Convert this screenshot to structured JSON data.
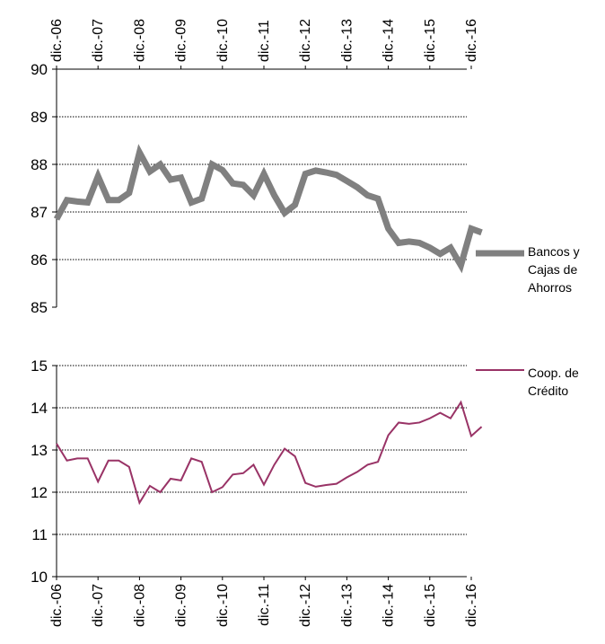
{
  "chart_data": [
    {
      "type": "line",
      "title": "",
      "xlabel": "",
      "ylabel": "",
      "ylim": [
        85,
        90
      ],
      "yticks": [
        85,
        86,
        87,
        88,
        89,
        90
      ],
      "grid": true,
      "x_tick_labels": [
        "dic.-06",
        "dic.-07",
        "dic.-08",
        "dic.-09",
        "dic.-10",
        "dic.-11",
        "dic.-12",
        "dic.-13",
        "dic.-14",
        "dic.-15",
        "dic.-16"
      ],
      "x_tick_position": "top",
      "legend_position": "right",
      "series": [
        {
          "name": "Bancos y Cajas de Ahorros",
          "color": "#808080",
          "x": [
            "dic.-06",
            "mar.-07",
            "jun.-07",
            "sep.-07",
            "dic.-07",
            "mar.-08",
            "jun.-08",
            "sep.-08",
            "dic.-08",
            "mar.-09",
            "jun.-09",
            "sep.-09",
            "dic.-09",
            "mar.-10",
            "jun.-10",
            "sep.-10",
            "dic.-10",
            "mar.-11",
            "jun.-11",
            "sep.-11",
            "dic.-11",
            "mar.-12",
            "jun.-12",
            "sep.-12",
            "dic.-12",
            "mar.-13",
            "jun.-13",
            "sep.-13",
            "dic.-13",
            "mar.-14",
            "jun.-14",
            "sep.-14",
            "dic.-14",
            "mar.-15",
            "jun.-15",
            "sep.-15",
            "dic.-15",
            "mar.-16",
            "jun.-16",
            "sep.-16",
            "dic.-16",
            "mar.-17"
          ],
          "values": [
            86.85,
            87.25,
            87.22,
            87.2,
            87.75,
            87.25,
            87.25,
            87.4,
            88.25,
            87.85,
            88.0,
            87.68,
            87.72,
            87.2,
            87.28,
            88.0,
            87.88,
            87.6,
            87.57,
            87.35,
            87.8,
            87.35,
            86.98,
            87.15,
            87.8,
            87.87,
            87.83,
            87.78,
            87.65,
            87.52,
            87.35,
            87.28,
            86.65,
            86.35,
            86.38,
            86.35,
            86.25,
            86.12,
            86.25,
            85.88,
            86.65,
            86.57
          ]
        }
      ]
    },
    {
      "type": "line",
      "title": "",
      "xlabel": "",
      "ylabel": "",
      "ylim": [
        10,
        15
      ],
      "yticks": [
        10,
        11,
        12,
        13,
        14,
        15
      ],
      "grid": true,
      "x_tick_labels": [
        "dic.-06",
        "dic.-07",
        "dic.-08",
        "dic.-09",
        "dic.-10",
        "dic.-11",
        "dic.-12",
        "dic.-13",
        "dic.-14",
        "dic.-15",
        "dic.-16"
      ],
      "x_tick_position": "bottom",
      "legend_position": "right",
      "series": [
        {
          "name": "Coop. de Crédito",
          "color": "#993366",
          "x": [
            "dic.-06",
            "mar.-07",
            "jun.-07",
            "sep.-07",
            "dic.-07",
            "mar.-08",
            "jun.-08",
            "sep.-08",
            "dic.-08",
            "mar.-09",
            "jun.-09",
            "sep.-09",
            "dic.-09",
            "mar.-10",
            "jun.-10",
            "sep.-10",
            "dic.-10",
            "mar.-11",
            "jun.-11",
            "sep.-11",
            "dic.-11",
            "mar.-12",
            "jun.-12",
            "sep.-12",
            "dic.-12",
            "mar.-13",
            "jun.-13",
            "sep.-13",
            "dic.-13",
            "mar.-14",
            "jun.-14",
            "sep.-14",
            "dic.-14",
            "mar.-15",
            "jun.-15",
            "sep.-15",
            "dic.-15",
            "mar.-16",
            "jun.-16",
            "sep.-16",
            "dic.-16",
            "mar.-17"
          ],
          "values": [
            13.15,
            12.75,
            12.8,
            12.8,
            12.25,
            12.75,
            12.75,
            12.6,
            11.75,
            12.15,
            12.0,
            12.32,
            12.28,
            12.8,
            12.72,
            12.0,
            12.12,
            12.42,
            12.45,
            12.65,
            12.18,
            12.65,
            13.03,
            12.85,
            12.22,
            12.13,
            12.17,
            12.2,
            12.35,
            12.48,
            12.65,
            12.72,
            13.35,
            13.65,
            13.62,
            13.65,
            13.75,
            13.88,
            13.75,
            14.13,
            13.33,
            13.55
          ]
        }
      ]
    }
  ]
}
